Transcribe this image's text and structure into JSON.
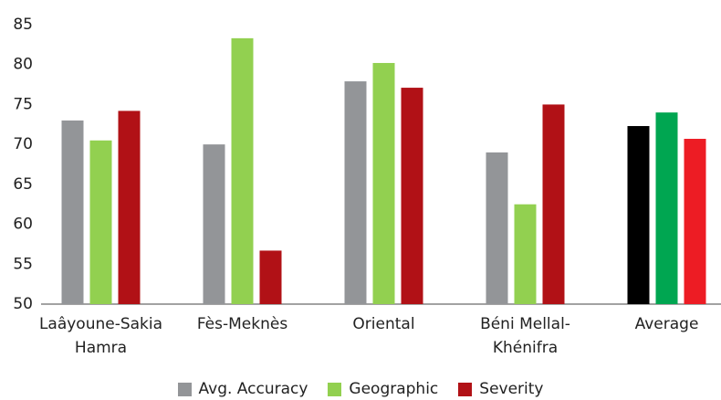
{
  "chart_data": {
    "type": "bar",
    "categories": [
      "Laâyoune-Sakia Hamra",
      "Fès-Meknès",
      "Oriental",
      "Béni Mellal-Khénifra",
      "Average"
    ],
    "series": [
      {
        "name": "Avg. Accuracy",
        "color": "#939598",
        "colors": [
          "#939598",
          "#939598",
          "#939598",
          "#939598",
          "#000000"
        ],
        "values": [
          73,
          70,
          77.9,
          69,
          72.3
        ]
      },
      {
        "name": "Geographic",
        "color": "#92d050",
        "colors": [
          "#92d050",
          "#92d050",
          "#92d050",
          "#92d050",
          "#00a651"
        ],
        "values": [
          70.5,
          83.3,
          80.2,
          62.5,
          74
        ]
      },
      {
        "name": "Severity",
        "color": "#b11116",
        "colors": [
          "#b11116",
          "#b11116",
          "#b11116",
          "#b11116",
          "#ed1c24"
        ],
        "values": [
          74.2,
          56.7,
          77.1,
          75,
          70.7
        ]
      }
    ],
    "ylim": [
      50,
      85
    ],
    "yticks": [
      50,
      55,
      60,
      65,
      70,
      75,
      80,
      85
    ],
    "grid": false,
    "legend": "bottom"
  }
}
